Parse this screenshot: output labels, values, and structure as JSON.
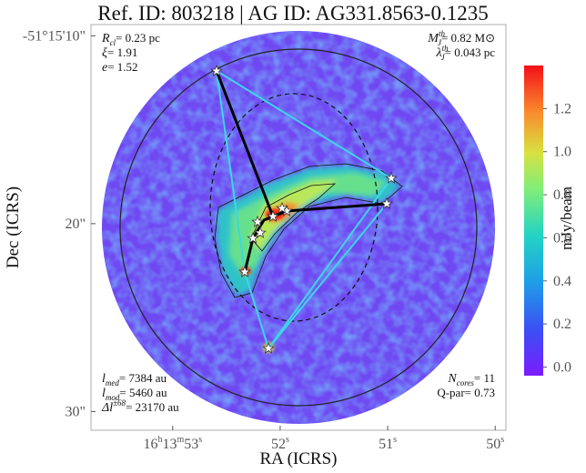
{
  "chart_data": {
    "type": "image",
    "title": "Ref. ID: 803218 | AG ID: AG331.8563-0.1235",
    "xlabel": "RA (ICRS)",
    "ylabel": "Dec (ICRS)",
    "xlim": [
      53.76,
      49.9
    ],
    "xticks": [
      {
        "value": 53,
        "label": "16h13m53s"
      },
      {
        "value": 52,
        "label": "52s"
      },
      {
        "value": 51,
        "label": "51s"
      },
      {
        "value": 50,
        "label": "50s"
      }
    ],
    "ylim": [
      31.0,
      9.4
    ],
    "yticks": [
      {
        "value": 10,
        "label": "-51°15'10\""
      },
      {
        "value": 20,
        "label": "20\""
      },
      {
        "value": 30,
        "label": "30\""
      }
    ],
    "colorbar": {
      "label": "mJy/beam",
      "lim": [
        -0.04,
        1.4
      ],
      "ticks": [
        {
          "value": 0,
          "label": "0.0"
        },
        0.2,
        0.4,
        0.6,
        0.8,
        {
          "value": 1,
          "label": "1.0"
        },
        1.2
      ]
    },
    "annotations": [
      {
        "corner": "top-left",
        "lines": [
          {
            "sym": "R",
            "sub": "cl",
            "text": "= 0.23 pc"
          },
          {
            "sym": "ξ",
            "text": "= 1.91"
          },
          {
            "sym": "e",
            "text": "= 1.52"
          }
        ]
      },
      {
        "corner": "top-right",
        "lines": [
          {
            "sym": "M",
            "sub": "J",
            "sup": "th",
            "text": "= 0.82 M⊙"
          },
          {
            "sym": "λ",
            "sub": "J",
            "sup": "th",
            "text": "= 0.043 pc"
          }
        ]
      },
      {
        "corner": "bottom-left",
        "lines": [
          {
            "sym": "l",
            "sub": "med",
            "text": "= 7384 au"
          },
          {
            "sym": "l",
            "sub": "mod",
            "text": "= 5460 au"
          },
          {
            "sym": "Δl",
            "sup": "±68",
            "text": "= 23170 au"
          }
        ]
      },
      {
        "corner": "bottom-right",
        "lines": [
          {
            "sym": "N",
            "sub": "cores",
            "text": "= 11"
          },
          {
            "text": "Q-par= 0.73"
          }
        ]
      }
    ]
  }
}
